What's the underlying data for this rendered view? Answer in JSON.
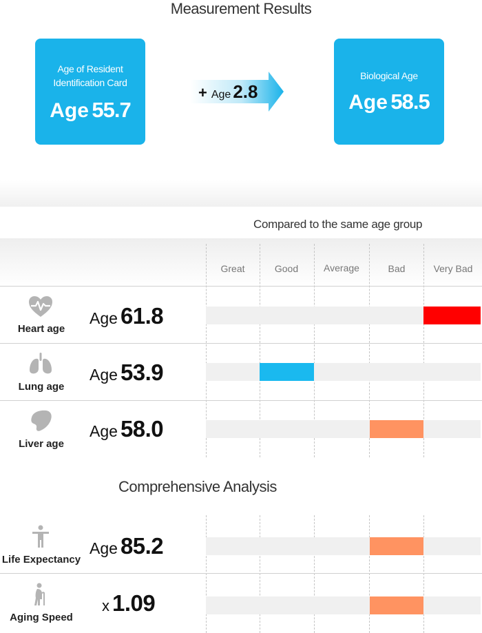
{
  "title": "Measurement Results",
  "resident_card": {
    "label": "Age of Resident Identification Card",
    "age_word": "Age",
    "age_value": "55.7"
  },
  "difference": {
    "sign": "+",
    "age_word": "Age",
    "value": "2.8"
  },
  "biological_card": {
    "label": "Biological Age",
    "age_word": "Age",
    "age_value": "58.5"
  },
  "comparison_title": "Compared to the same age group",
  "levels": [
    "Great",
    "Good",
    "Average",
    "Bad",
    "Very Bad"
  ],
  "colors": {
    "card": "#1ab3ea",
    "very_bad": "#ff0000",
    "good": "#1ab9ef",
    "bad": "#ff9361",
    "icon": "#b4b4b4"
  },
  "organs": [
    {
      "label": "Heart age",
      "icon": "heart-pulse-icon",
      "age_word": "Age",
      "value": "61.8",
      "level": "Very Bad"
    },
    {
      "label": "Lung age",
      "icon": "lungs-icon",
      "age_word": "Age",
      "value": "53.9",
      "level": "Good"
    },
    {
      "label": "Liver age",
      "icon": "liver-icon",
      "age_word": "Age",
      "value": "58.0",
      "level": "Bad"
    }
  ],
  "comprehensive_title": "Comprehensive Analysis",
  "comprehensive": [
    {
      "label": "Life Expectancy",
      "icon": "person-icon",
      "prefix": "Age",
      "value": "85.2",
      "level": "Bad"
    },
    {
      "label": "Aging Speed",
      "icon": "elderly-person-icon",
      "prefix": "x",
      "value": "1.09",
      "level": "Bad"
    }
  ]
}
